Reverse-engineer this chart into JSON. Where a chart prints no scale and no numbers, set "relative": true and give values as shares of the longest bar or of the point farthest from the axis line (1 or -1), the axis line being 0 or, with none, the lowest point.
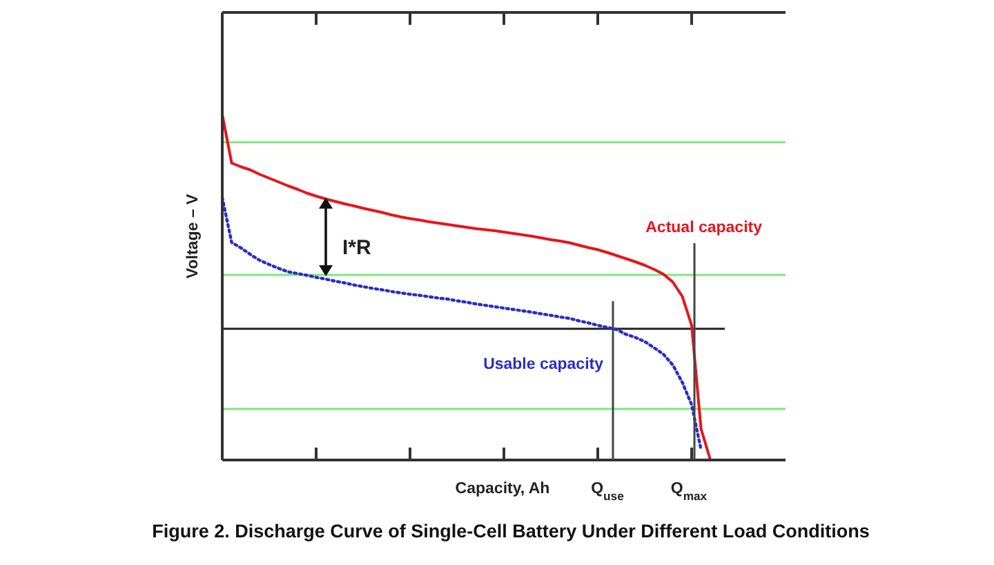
{
  "chart_data": {
    "type": "line",
    "title": "Figure 2. Discharge Curve of Single-Cell Battery Under Different Load Conditions",
    "xlabel": "Capacity, Ah",
    "ylabel": "Voltage – V",
    "relative": true,
    "marker": "none",
    "categories": [
      null,
      null,
      null,
      null,
      null,
      null,
      null,
      null,
      null,
      null,
      null,
      null,
      null,
      null,
      null,
      null,
      null,
      null,
      null,
      null,
      null,
      null,
      null,
      null,
      null,
      null,
      null,
      null,
      null,
      null,
      null,
      null,
      null,
      null,
      null,
      null,
      null,
      null,
      null,
      null,
      null,
      null,
      null,
      null,
      null,
      null,
      null,
      null,
      null,
      null,
      null,
      null,
      null,
      null,
      null,
      null,
      null,
      null,
      null,
      null,
      null
    ],
    "series": [
      {
        "name": "Actual capacity",
        "color": "#e8141c",
        "line_style": "solid",
        "values": [
          1.0,
          0.86,
          0.849,
          0.84,
          0.827,
          0.816,
          0.805,
          0.794,
          0.784,
          0.773,
          0.764,
          0.756,
          0.749,
          0.742,
          0.736,
          0.729,
          0.723,
          0.717,
          0.71,
          0.704,
          0.699,
          0.695,
          0.69,
          0.686,
          0.682,
          0.678,
          0.674,
          0.67,
          0.667,
          0.664,
          0.66,
          0.656,
          0.652,
          0.648,
          0.643,
          0.638,
          0.634,
          0.629,
          0.622,
          0.615,
          0.609,
          0.601,
          0.592,
          0.583,
          0.574,
          0.564,
          0.552,
          0.538,
          0.515,
          0.474,
          0.39,
          0.09,
          0,
          null,
          null,
          null,
          null,
          null,
          null,
          null,
          null
        ]
      },
      {
        "name": "Usable capacity",
        "color": "#2b2bc8",
        "line_style": "dotted",
        "values": [
          0.76,
          0.63,
          0.614,
          0.595,
          0.578,
          0.566,
          0.555,
          0.545,
          0.54,
          0.535,
          0.529,
          0.524,
          0.518,
          0.513,
          0.507,
          0.502,
          0.497,
          0.493,
          0.488,
          0.484,
          0.48,
          0.477,
          0.473,
          0.469,
          0.466,
          0.461,
          0.457,
          0.452,
          0.448,
          0.444,
          0.44,
          0.436,
          0.432,
          0.428,
          0.423,
          0.419,
          0.414,
          0.41,
          0.403,
          0.397,
          0.39,
          0.384,
          0.378,
          0.364,
          0.355,
          0.343,
          0.325,
          0.306,
          0.275,
          0.225,
          0.16,
          0.03,
          null,
          null,
          null,
          null,
          null,
          null,
          null,
          null,
          null
        ]
      }
    ],
    "ref_lines": [
      {
        "axis": "y",
        "value": 0.92,
        "color": "#7de87d"
      },
      {
        "axis": "y",
        "value": 0.536,
        "color": "#7de87d"
      },
      {
        "axis": "y",
        "value": 0.148,
        "color": "#7de87d"
      },
      {
        "axis": "y",
        "value": 0.38,
        "color": "#222222"
      }
    ],
    "annotations": [
      "I*R",
      "Q$_{use}$",
      "Q$_{max}$"
    ]
  }
}
